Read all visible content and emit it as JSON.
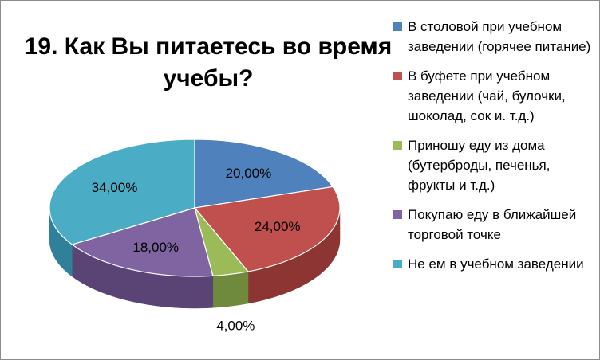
{
  "chart_data": {
    "type": "pie",
    "title": "19. Как Вы питаетесь во время учебы?",
    "slices": [
      {
        "label": "В столовой при учебном заведении (горячее питание)",
        "value": 20,
        "value_label": "20,00%",
        "color": "#4f81bd",
        "side": "#3a6192"
      },
      {
        "label": "В буфете при учебном заведении (чай, булочки, шоколад, сок и. т.д.)",
        "value": 24,
        "value_label": "24,00%",
        "color": "#c0504d",
        "side": "#8c3533"
      },
      {
        "label": "Приношу еду из дома (бутерброды, печенья, фрукты и т.д.)",
        "value": 4,
        "value_label": "4,00%",
        "color": "#9bbb59",
        "side": "#6f8a3c"
      },
      {
        "label": "Покупаю еду в ближайшей торговой точке",
        "value": 18,
        "value_label": "18,00%",
        "color": "#8064a2",
        "side": "#5a4476"
      },
      {
        "label": "Не ем в учебном заведении",
        "value": 34,
        "value_label": "34,00%",
        "color": "#4bacc6",
        "side": "#31809a"
      }
    ],
    "legend_position": "right"
  }
}
